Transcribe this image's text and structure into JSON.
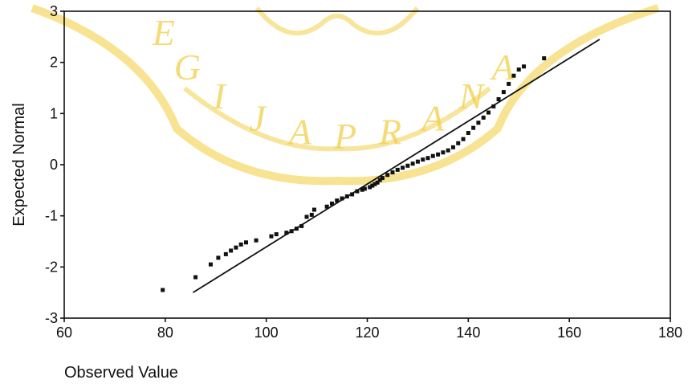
{
  "chart_data": {
    "type": "scatter",
    "title": "",
    "xlabel": "Observed Value",
    "ylabel": "Expected Normal",
    "xlim": [
      60,
      180
    ],
    "ylim": [
      -3,
      3
    ],
    "xticks": [
      60,
      80,
      100,
      120,
      140,
      160,
      180
    ],
    "yticks": [
      -3,
      -2,
      -1,
      0,
      1,
      2,
      3
    ],
    "grid": false,
    "legend": "none",
    "series": [
      {
        "kind": "points",
        "values": [
          [
            79.5,
            -2.45
          ],
          [
            86,
            -2.2
          ],
          [
            89,
            -1.95
          ],
          [
            90.5,
            -1.82
          ],
          [
            92,
            -1.75
          ],
          [
            93,
            -1.68
          ],
          [
            94,
            -1.62
          ],
          [
            95,
            -1.56
          ],
          [
            96,
            -1.52
          ],
          [
            98,
            -1.48
          ],
          [
            101,
            -1.4
          ],
          [
            102,
            -1.36
          ],
          [
            104,
            -1.33
          ],
          [
            105,
            -1.3
          ],
          [
            106,
            -1.25
          ],
          [
            107,
            -1.2
          ],
          [
            108,
            -1.02
          ],
          [
            109,
            -0.98
          ],
          [
            109.5,
            -0.88
          ],
          [
            112,
            -0.82
          ],
          [
            113,
            -0.76
          ],
          [
            114,
            -0.7
          ],
          [
            115,
            -0.66
          ],
          [
            116,
            -0.62
          ],
          [
            117,
            -0.58
          ],
          [
            118,
            -0.52
          ],
          [
            119,
            -0.49
          ],
          [
            119.5,
            -0.47
          ],
          [
            120.5,
            -0.44
          ],
          [
            121,
            -0.41
          ],
          [
            121.5,
            -0.38
          ],
          [
            122,
            -0.35
          ],
          [
            122.5,
            -0.3
          ],
          [
            123,
            -0.26
          ],
          [
            124,
            -0.2
          ],
          [
            125,
            -0.15
          ],
          [
            126,
            -0.1
          ],
          [
            127,
            -0.06
          ],
          [
            128,
            -0.02
          ],
          [
            129,
            0.02
          ],
          [
            130,
            0.06
          ],
          [
            131,
            0.1
          ],
          [
            132,
            0.13
          ],
          [
            133,
            0.17
          ],
          [
            134,
            0.2
          ],
          [
            135,
            0.24
          ],
          [
            136,
            0.28
          ],
          [
            137,
            0.34
          ],
          [
            138,
            0.42
          ],
          [
            139,
            0.5
          ],
          [
            140,
            0.62
          ],
          [
            141,
            0.72
          ],
          [
            142,
            0.82
          ],
          [
            143,
            0.92
          ],
          [
            144,
            1.02
          ],
          [
            145,
            1.14
          ],
          [
            146,
            1.28
          ],
          [
            147,
            1.42
          ],
          [
            148,
            1.58
          ],
          [
            149,
            1.74
          ],
          [
            150,
            1.86
          ],
          [
            151,
            1.92
          ],
          [
            155,
            2.08
          ]
        ],
        "color": "#111111"
      },
      {
        "kind": "reference-line",
        "values": [
          [
            85.5,
            -2.5
          ],
          [
            166,
            2.45
          ]
        ],
        "color": "#111111"
      }
    ]
  },
  "watermark": {
    "letters": [
      "E",
      "G",
      "I",
      "J",
      "A",
      "P",
      "R",
      "A",
      "N",
      "A"
    ],
    "color": "#f2d04a"
  }
}
